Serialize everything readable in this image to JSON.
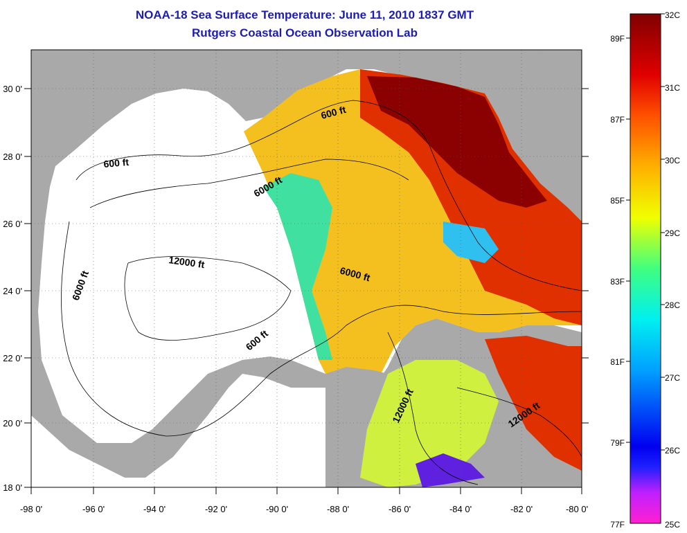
{
  "title": "NOAA-18 Sea Surface Temperature:  June 11, 2010 1837 GMT",
  "subtitle": "Rutgers Coastal Ocean Observation Lab",
  "lon_labels": [
    "-98 0'",
    "-96 0'",
    "-94 0'",
    "-92 0'",
    "-90 0'",
    "-88 0'",
    "-86 0'",
    "-84 0'",
    "-82 0'",
    "-80 0'"
  ],
  "lat_labels": [
    "18 0'",
    "20 0'",
    "22 0'",
    "24 0'",
    "26 0'",
    "28 0'",
    "30 0'"
  ],
  "map_extent": {
    "lon_min": -98,
    "lon_max": -80,
    "lat_min": 18,
    "lat_max": 31
  },
  "contour_labels": [
    "600 ft",
    "600 ft",
    "6000 ft",
    "6000 ft",
    "12000 ft",
    "6000 ft",
    "600 ft",
    "12000 ft",
    "12000 ft"
  ],
  "colorbar": {
    "celsius_labels": [
      "32C",
      "31C",
      "30C",
      "29C",
      "28C",
      "27C",
      "26C",
      "25C"
    ],
    "fahrenheit_labels": [
      "89F",
      "87F",
      "85F",
      "83F",
      "81F",
      "79F",
      "77F"
    ],
    "range_c": [
      25,
      32
    ],
    "colors": [
      "#ff20d0",
      "#c020ff",
      "#2020ff",
      "#00a0ff",
      "#00f0f0",
      "#40ff80",
      "#f0ff00",
      "#ffb000",
      "#ff5000",
      "#e00000",
      "#800000"
    ]
  },
  "colors": {
    "land": "#a9a9a9",
    "ocean_nodata": "#ffffff",
    "title": "#1c1cb4"
  }
}
